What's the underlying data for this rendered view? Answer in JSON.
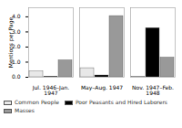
{
  "chart_data": {
    "type": "bar",
    "categories": [
      "Jul. 1946–Jan. 1947",
      "May–Aug. 1947",
      "Nov. 1947–Feb. 1948"
    ],
    "series": [
      {
        "name": "Common People",
        "color": "#e8e8e8",
        "values": [
          0.38,
          0.6,
          0.04
        ]
      },
      {
        "name": "Poor Peasants and Hired Laborers",
        "color": "#000000",
        "values": [
          0.04,
          0.12,
          3.25
        ]
      },
      {
        "name": "Masses",
        "color": "#999999",
        "values": [
          1.12,
          4.05,
          1.3
        ]
      }
    ],
    "ylabel": "Mentions per Page",
    "ylim": [
      0,
      4.6
    ],
    "yticks": [
      0,
      1,
      2,
      3,
      4
    ],
    "grid": false,
    "legend": "bottom"
  }
}
